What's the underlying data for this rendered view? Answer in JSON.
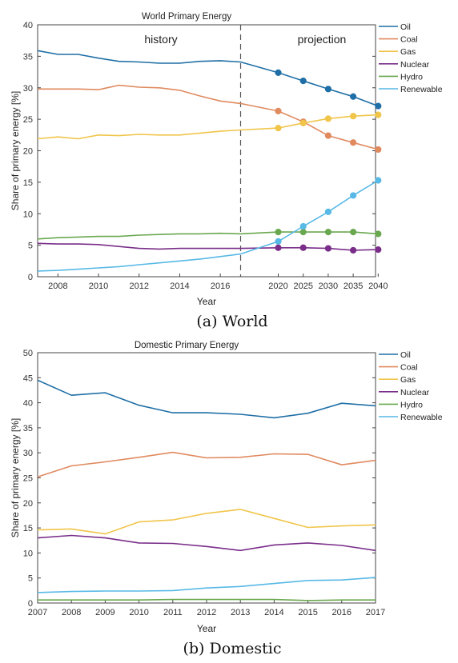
{
  "colors": {
    "Oil": "#1f6fa6",
    "Coal": "#e08a5f",
    "Gas": "#f0c54a",
    "Nuclear": "#7a2e8a",
    "Hydro": "#6aa84f",
    "Renewable": "#58b9e6"
  },
  "chart_data": [
    {
      "type": "line",
      "title": "World Primary Energy",
      "xlabel": "Year",
      "ylabel": "Share of primary energy [%]",
      "xlim": [
        2007,
        2040
      ],
      "ylim": [
        0,
        40
      ],
      "yticks": [
        0,
        5,
        10,
        15,
        20,
        25,
        30,
        35,
        40
      ],
      "xtick_labels": [
        "2008",
        "2010",
        "2012",
        "2014",
        "2016",
        "2020",
        "2025",
        "2030",
        "2035",
        "2040"
      ],
      "xtick_positions": [
        2008,
        2010,
        2012,
        2014,
        2016,
        2020,
        2025,
        2030,
        2035,
        2040
      ],
      "annotations": [
        "history",
        "projection"
      ],
      "divider_between": [
        "2016",
        "2020"
      ],
      "legend_position": "right",
      "x": [
        2007,
        2008,
        2009,
        2010,
        2011,
        2012,
        2013,
        2014,
        2015,
        2016,
        2017,
        2020,
        2025,
        2030,
        2035,
        2040
      ],
      "marker_from_index": 11,
      "series": [
        {
          "name": "Oil",
          "values": [
            35.9,
            35.3,
            35.3,
            34.7,
            34.2,
            34.1,
            33.9,
            33.9,
            34.2,
            34.3,
            34.1,
            32.4,
            31.1,
            29.8,
            28.6,
            27.1
          ]
        },
        {
          "name": "Coal",
          "values": [
            29.8,
            29.8,
            29.8,
            29.7,
            30.4,
            30.1,
            30.0,
            29.6,
            28.7,
            27.9,
            27.5,
            26.3,
            24.6,
            22.4,
            21.3,
            20.2
          ]
        },
        {
          "name": "Gas",
          "values": [
            21.9,
            22.2,
            21.9,
            22.5,
            22.4,
            22.6,
            22.5,
            22.5,
            22.8,
            23.1,
            23.3,
            23.6,
            24.4,
            25.1,
            25.5,
            25.7
          ]
        },
        {
          "name": "Nuclear",
          "values": [
            5.3,
            5.2,
            5.2,
            5.1,
            4.8,
            4.5,
            4.4,
            4.5,
            4.5,
            4.5,
            4.5,
            4.6,
            4.6,
            4.5,
            4.2,
            4.3
          ]
        },
        {
          "name": "Hydro",
          "values": [
            6.0,
            6.2,
            6.3,
            6.4,
            6.4,
            6.6,
            6.7,
            6.8,
            6.8,
            6.9,
            6.8,
            7.1,
            7.1,
            7.1,
            7.1,
            6.8
          ]
        },
        {
          "name": "Renewable",
          "values": [
            0.9,
            1.0,
            1.2,
            1.4,
            1.6,
            1.9,
            2.2,
            2.5,
            2.8,
            3.2,
            3.6,
            5.6,
            8.0,
            10.3,
            12.9,
            15.3
          ]
        }
      ]
    },
    {
      "type": "line",
      "title": "Domestic Primary Energy",
      "xlabel": "Year",
      "ylabel": "Share of primary energy [%]",
      "xlim": [
        2007,
        2017
      ],
      "ylim": [
        0,
        50
      ],
      "yticks": [
        0,
        5,
        10,
        15,
        20,
        25,
        30,
        35,
        40,
        45,
        50
      ],
      "xtick_labels": [
        "2007",
        "2008",
        "2009",
        "2010",
        "2011",
        "2012",
        "2013",
        "2014",
        "2015",
        "2016",
        "2017"
      ],
      "legend_position": "right",
      "x": [
        2007,
        2008,
        2009,
        2010,
        2011,
        2012,
        2013,
        2014,
        2015,
        2016,
        2017
      ],
      "series": [
        {
          "name": "Oil",
          "values": [
            44.5,
            41.5,
            42.0,
            39.5,
            38.0,
            38.0,
            37.7,
            37.0,
            37.9,
            39.9,
            39.4
          ]
        },
        {
          "name": "Coal",
          "values": [
            25.2,
            27.4,
            28.2,
            29.1,
            30.1,
            29.0,
            29.1,
            29.8,
            29.7,
            27.6,
            28.5
          ]
        },
        {
          "name": "Gas",
          "values": [
            14.6,
            14.8,
            13.8,
            16.2,
            16.6,
            17.9,
            18.7,
            16.9,
            15.1,
            15.4,
            15.6
          ]
        },
        {
          "name": "Nuclear",
          "values": [
            13.0,
            13.5,
            13.0,
            12.0,
            11.9,
            11.3,
            10.5,
            11.6,
            12.0,
            11.5,
            10.5
          ]
        },
        {
          "name": "Hydro",
          "values": [
            0.6,
            0.6,
            0.6,
            0.6,
            0.7,
            0.7,
            0.7,
            0.7,
            0.5,
            0.6,
            0.6
          ]
        },
        {
          "name": "Renewable",
          "values": [
            2.1,
            2.3,
            2.4,
            2.4,
            2.5,
            3.0,
            3.3,
            3.9,
            4.5,
            4.6,
            5.1
          ]
        }
      ]
    }
  ],
  "captions": [
    "(a) World",
    "(b) Domestic"
  ]
}
